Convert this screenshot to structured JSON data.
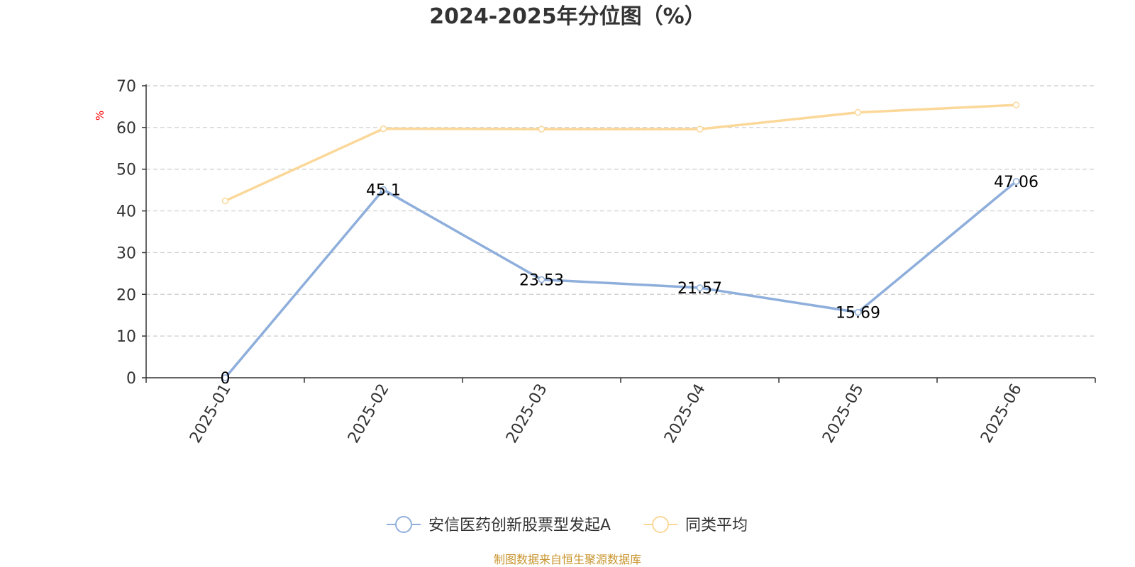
{
  "chart_data": {
    "type": "line",
    "title": "2024-2025年分位图（%）",
    "ylabel": "%",
    "categories": [
      "2025-01",
      "2025-02",
      "2025-03",
      "2025-04",
      "2025-05",
      "2025-06"
    ],
    "ylim": [
      0,
      70
    ],
    "yticks": [
      0,
      10,
      20,
      30,
      40,
      50,
      60,
      70
    ],
    "grid": true,
    "legend_position": "bottom-center",
    "series": [
      {
        "name": "安信医药创新股票型发起A",
        "values": [
          0,
          45.1,
          23.53,
          21.57,
          15.69,
          47.06
        ],
        "labels": [
          "0",
          "45.1",
          "23.53",
          "21.57",
          "15.69",
          "47.06"
        ],
        "color": "#8eaedb"
      },
      {
        "name": "同类平均",
        "values": [
          42.4,
          59.7,
          59.6,
          59.6,
          63.6,
          65.4
        ],
        "color": "#fbd899"
      }
    ]
  },
  "footer": {
    "source_text": "制图数据来自恒生聚源数据库",
    "source_color": "#c8952e"
  },
  "colors": {
    "ylabel": "#ff0000",
    "axis": "#333333",
    "grid": "#cccccc"
  }
}
